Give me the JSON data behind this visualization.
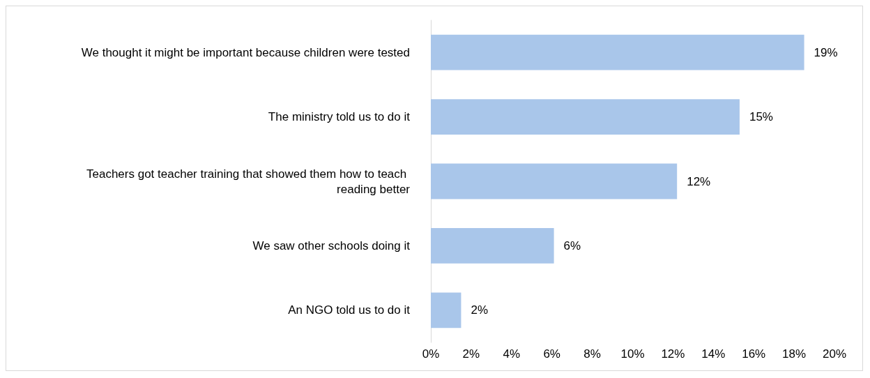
{
  "chart_data": {
    "type": "bar",
    "orientation": "horizontal",
    "categories": [
      "We thought it might be important because children were tested",
      "The ministry told us to do it",
      "Teachers got teacher training that showed them how to teach reading better",
      "We saw other schools doing it",
      "An NGO told us to do it"
    ],
    "values": [
      18.5,
      15.3,
      12.2,
      6.1,
      1.5
    ],
    "value_labels": [
      "19%",
      "15%",
      "12%",
      "6%",
      "2%"
    ],
    "color": "#a9c6ea",
    "xlim": [
      0,
      20
    ],
    "xticks": [
      {
        "value": 0,
        "label": "0%"
      },
      {
        "value": 2,
        "label": "2%"
      },
      {
        "value": 4,
        "label": "4%"
      },
      {
        "value": 6,
        "label": "6%"
      },
      {
        "value": 8,
        "label": "8%"
      },
      {
        "value": 10,
        "label": "10%"
      },
      {
        "value": 12,
        "label": "12%"
      },
      {
        "value": 14,
        "label": "14%"
      },
      {
        "value": 16,
        "label": "16%"
      },
      {
        "value": 18,
        "label": "18%"
      },
      {
        "value": 20,
        "label": "20%"
      }
    ],
    "grid": false
  }
}
